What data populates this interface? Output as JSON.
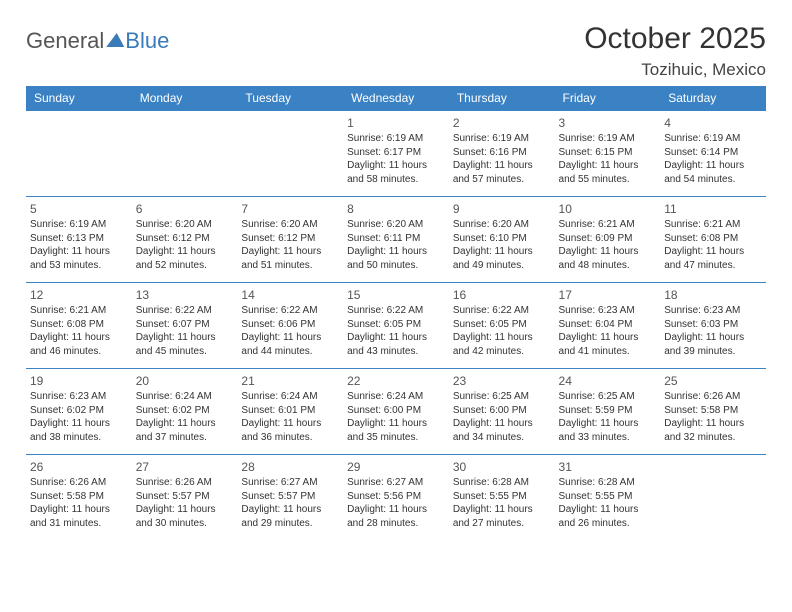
{
  "logo": {
    "part1": "General",
    "part2": "Blue"
  },
  "title": "October 2025",
  "location": "Tozihuic, Mexico",
  "day_headers": [
    "Sunday",
    "Monday",
    "Tuesday",
    "Wednesday",
    "Thursday",
    "Friday",
    "Saturday"
  ],
  "colors": {
    "header_bg": "#3b82c4",
    "header_fg": "#ffffff",
    "border": "#3b82c4",
    "logo_blue": "#3b7ab8"
  },
  "weeks": [
    [
      {
        "day": "",
        "sunrise": "",
        "sunset": "",
        "daylight": ""
      },
      {
        "day": "",
        "sunrise": "",
        "sunset": "",
        "daylight": ""
      },
      {
        "day": "",
        "sunrise": "",
        "sunset": "",
        "daylight": ""
      },
      {
        "day": "1",
        "sunrise": "Sunrise: 6:19 AM",
        "sunset": "Sunset: 6:17 PM",
        "daylight": "Daylight: 11 hours and 58 minutes."
      },
      {
        "day": "2",
        "sunrise": "Sunrise: 6:19 AM",
        "sunset": "Sunset: 6:16 PM",
        "daylight": "Daylight: 11 hours and 57 minutes."
      },
      {
        "day": "3",
        "sunrise": "Sunrise: 6:19 AM",
        "sunset": "Sunset: 6:15 PM",
        "daylight": "Daylight: 11 hours and 55 minutes."
      },
      {
        "day": "4",
        "sunrise": "Sunrise: 6:19 AM",
        "sunset": "Sunset: 6:14 PM",
        "daylight": "Daylight: 11 hours and 54 minutes."
      }
    ],
    [
      {
        "day": "5",
        "sunrise": "Sunrise: 6:19 AM",
        "sunset": "Sunset: 6:13 PM",
        "daylight": "Daylight: 11 hours and 53 minutes."
      },
      {
        "day": "6",
        "sunrise": "Sunrise: 6:20 AM",
        "sunset": "Sunset: 6:12 PM",
        "daylight": "Daylight: 11 hours and 52 minutes."
      },
      {
        "day": "7",
        "sunrise": "Sunrise: 6:20 AM",
        "sunset": "Sunset: 6:12 PM",
        "daylight": "Daylight: 11 hours and 51 minutes."
      },
      {
        "day": "8",
        "sunrise": "Sunrise: 6:20 AM",
        "sunset": "Sunset: 6:11 PM",
        "daylight": "Daylight: 11 hours and 50 minutes."
      },
      {
        "day": "9",
        "sunrise": "Sunrise: 6:20 AM",
        "sunset": "Sunset: 6:10 PM",
        "daylight": "Daylight: 11 hours and 49 minutes."
      },
      {
        "day": "10",
        "sunrise": "Sunrise: 6:21 AM",
        "sunset": "Sunset: 6:09 PM",
        "daylight": "Daylight: 11 hours and 48 minutes."
      },
      {
        "day": "11",
        "sunrise": "Sunrise: 6:21 AM",
        "sunset": "Sunset: 6:08 PM",
        "daylight": "Daylight: 11 hours and 47 minutes."
      }
    ],
    [
      {
        "day": "12",
        "sunrise": "Sunrise: 6:21 AM",
        "sunset": "Sunset: 6:08 PM",
        "daylight": "Daylight: 11 hours and 46 minutes."
      },
      {
        "day": "13",
        "sunrise": "Sunrise: 6:22 AM",
        "sunset": "Sunset: 6:07 PM",
        "daylight": "Daylight: 11 hours and 45 minutes."
      },
      {
        "day": "14",
        "sunrise": "Sunrise: 6:22 AM",
        "sunset": "Sunset: 6:06 PM",
        "daylight": "Daylight: 11 hours and 44 minutes."
      },
      {
        "day": "15",
        "sunrise": "Sunrise: 6:22 AM",
        "sunset": "Sunset: 6:05 PM",
        "daylight": "Daylight: 11 hours and 43 minutes."
      },
      {
        "day": "16",
        "sunrise": "Sunrise: 6:22 AM",
        "sunset": "Sunset: 6:05 PM",
        "daylight": "Daylight: 11 hours and 42 minutes."
      },
      {
        "day": "17",
        "sunrise": "Sunrise: 6:23 AM",
        "sunset": "Sunset: 6:04 PM",
        "daylight": "Daylight: 11 hours and 41 minutes."
      },
      {
        "day": "18",
        "sunrise": "Sunrise: 6:23 AM",
        "sunset": "Sunset: 6:03 PM",
        "daylight": "Daylight: 11 hours and 39 minutes."
      }
    ],
    [
      {
        "day": "19",
        "sunrise": "Sunrise: 6:23 AM",
        "sunset": "Sunset: 6:02 PM",
        "daylight": "Daylight: 11 hours and 38 minutes."
      },
      {
        "day": "20",
        "sunrise": "Sunrise: 6:24 AM",
        "sunset": "Sunset: 6:02 PM",
        "daylight": "Daylight: 11 hours and 37 minutes."
      },
      {
        "day": "21",
        "sunrise": "Sunrise: 6:24 AM",
        "sunset": "Sunset: 6:01 PM",
        "daylight": "Daylight: 11 hours and 36 minutes."
      },
      {
        "day": "22",
        "sunrise": "Sunrise: 6:24 AM",
        "sunset": "Sunset: 6:00 PM",
        "daylight": "Daylight: 11 hours and 35 minutes."
      },
      {
        "day": "23",
        "sunrise": "Sunrise: 6:25 AM",
        "sunset": "Sunset: 6:00 PM",
        "daylight": "Daylight: 11 hours and 34 minutes."
      },
      {
        "day": "24",
        "sunrise": "Sunrise: 6:25 AM",
        "sunset": "Sunset: 5:59 PM",
        "daylight": "Daylight: 11 hours and 33 minutes."
      },
      {
        "day": "25",
        "sunrise": "Sunrise: 6:26 AM",
        "sunset": "Sunset: 5:58 PM",
        "daylight": "Daylight: 11 hours and 32 minutes."
      }
    ],
    [
      {
        "day": "26",
        "sunrise": "Sunrise: 6:26 AM",
        "sunset": "Sunset: 5:58 PM",
        "daylight": "Daylight: 11 hours and 31 minutes."
      },
      {
        "day": "27",
        "sunrise": "Sunrise: 6:26 AM",
        "sunset": "Sunset: 5:57 PM",
        "daylight": "Daylight: 11 hours and 30 minutes."
      },
      {
        "day": "28",
        "sunrise": "Sunrise: 6:27 AM",
        "sunset": "Sunset: 5:57 PM",
        "daylight": "Daylight: 11 hours and 29 minutes."
      },
      {
        "day": "29",
        "sunrise": "Sunrise: 6:27 AM",
        "sunset": "Sunset: 5:56 PM",
        "daylight": "Daylight: 11 hours and 28 minutes."
      },
      {
        "day": "30",
        "sunrise": "Sunrise: 6:28 AM",
        "sunset": "Sunset: 5:55 PM",
        "daylight": "Daylight: 11 hours and 27 minutes."
      },
      {
        "day": "31",
        "sunrise": "Sunrise: 6:28 AM",
        "sunset": "Sunset: 5:55 PM",
        "daylight": "Daylight: 11 hours and 26 minutes."
      },
      {
        "day": "",
        "sunrise": "",
        "sunset": "",
        "daylight": ""
      }
    ]
  ]
}
